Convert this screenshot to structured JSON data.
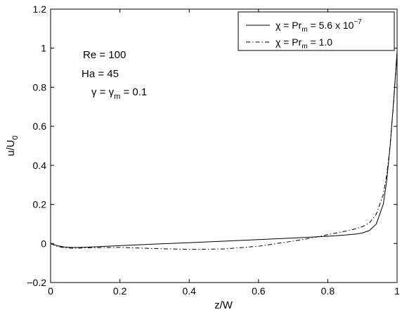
{
  "chart_data": {
    "type": "line",
    "xlabel": "z/W",
    "ylabel_main": "u/U",
    "ylabel_sub": "0",
    "xlim": [
      0,
      1
    ],
    "ylim": [
      -0.2,
      1.2
    ],
    "xticks": [
      0,
      0.2,
      0.4,
      0.6,
      0.8,
      1
    ],
    "xtick_labels": [
      "0",
      "0.2",
      "0.4",
      "0.6",
      "0.8",
      "1"
    ],
    "yticks": [
      -0.2,
      0,
      0.2,
      0.4,
      0.6,
      0.8,
      1,
      1.2
    ],
    "ytick_labels": [
      "−0.2",
      "0",
      "0.2",
      "0.4",
      "0.6",
      "0.8",
      "1",
      "1.2"
    ],
    "grid": false,
    "legend_position": "top-right",
    "annotations": {
      "re": "Re  = 100",
      "ha": "Ha  = 45",
      "gamma_prefix": "γ = γ",
      "gamma_sub": "m",
      "gamma_suffix": " = 0.1"
    },
    "series": [
      {
        "legend_prefix": "χ = Pr",
        "legend_sub": "m",
        "legend_mid": " = 5.6 x 10",
        "legend_sup": "−7",
        "style": "solid",
        "color": "#000000",
        "x": [
          0,
          0.01,
          0.02,
          0.04,
          0.06,
          0.08,
          0.1,
          0.2,
          0.3,
          0.4,
          0.5,
          0.6,
          0.7,
          0.8,
          0.85,
          0.88,
          0.9,
          0.92,
          0.94,
          0.96,
          0.97,
          0.98,
          0.99,
          1.0
        ],
        "y": [
          0,
          -0.006,
          -0.012,
          -0.018,
          -0.02,
          -0.02,
          -0.019,
          -0.011,
          -0.003,
          0.004,
          0.012,
          0.02,
          0.028,
          0.037,
          0.043,
          0.048,
          0.054,
          0.066,
          0.1,
          0.2,
          0.32,
          0.5,
          0.73,
          0.98
        ]
      },
      {
        "legend_prefix": "χ = Pr",
        "legend_sub": "m",
        "legend_mid": " = 1.0",
        "legend_sup": "",
        "style": "dashdot",
        "color": "#000000",
        "x": [
          0,
          0.01,
          0.02,
          0.04,
          0.06,
          0.08,
          0.1,
          0.2,
          0.3,
          0.4,
          0.5,
          0.6,
          0.7,
          0.75,
          0.8,
          0.85,
          0.88,
          0.9,
          0.92,
          0.94,
          0.96,
          0.97,
          0.98,
          0.99,
          1.0
        ],
        "y": [
          0,
          -0.008,
          -0.015,
          -0.022,
          -0.024,
          -0.024,
          -0.022,
          -0.02,
          -0.026,
          -0.03,
          -0.028,
          -0.014,
          0.012,
          0.027,
          0.045,
          0.063,
          0.075,
          0.086,
          0.105,
          0.15,
          0.25,
          0.35,
          0.5,
          0.72,
          0.98
        ]
      }
    ]
  }
}
